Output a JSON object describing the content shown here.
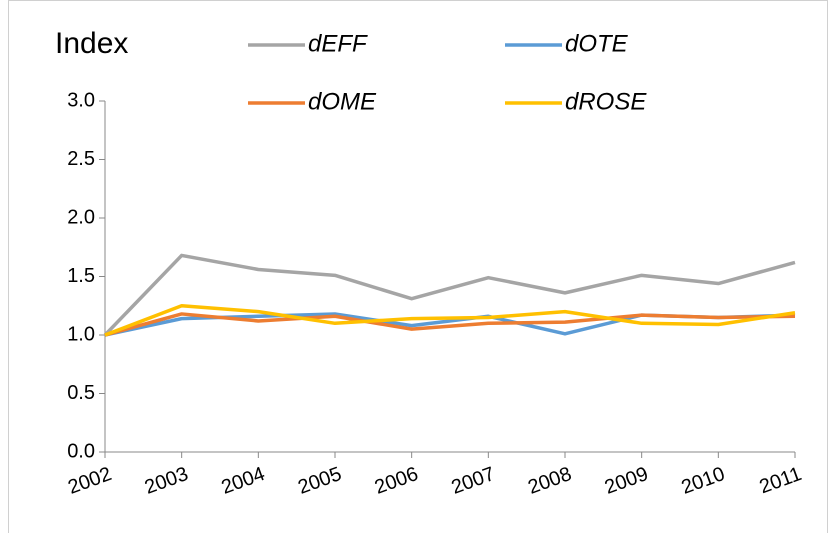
{
  "chart_data": {
    "type": "line",
    "title": "Index",
    "categories": [
      "2002",
      "2003",
      "2004",
      "2005",
      "2006",
      "2007",
      "2008",
      "2009",
      "2010",
      "2011"
    ],
    "series": [
      {
        "name": "dEFF",
        "color": "#a5a5a5",
        "values": [
          1.0,
          1.68,
          1.56,
          1.51,
          1.31,
          1.49,
          1.36,
          1.51,
          1.44,
          1.62
        ]
      },
      {
        "name": "dOTE",
        "color": "#5b9bd5",
        "values": [
          1.0,
          1.14,
          1.16,
          1.18,
          1.08,
          1.16,
          1.01,
          1.17,
          1.15,
          1.17
        ]
      },
      {
        "name": "dOME",
        "color": "#ed7d31",
        "values": [
          1.0,
          1.18,
          1.12,
          1.16,
          1.05,
          1.1,
          1.11,
          1.17,
          1.15,
          1.16
        ]
      },
      {
        "name": "dROSE",
        "color": "#ffc000",
        "values": [
          1.0,
          1.25,
          1.2,
          1.1,
          1.14,
          1.15,
          1.2,
          1.1,
          1.09,
          1.19
        ]
      }
    ],
    "ylim": [
      0,
      3
    ],
    "yticks": [
      {
        "value": 0,
        "label": "0.0"
      },
      {
        "value": 0.5,
        "label": "0.5"
      },
      {
        "value": 1,
        "label": "1.0"
      },
      {
        "value": 1.5,
        "label": "1.5"
      },
      {
        "value": 2,
        "label": "2.0"
      },
      {
        "value": 2.5,
        "label": "2.5"
      },
      {
        "value": 3,
        "label": "3.0"
      }
    ],
    "grid": false
  }
}
